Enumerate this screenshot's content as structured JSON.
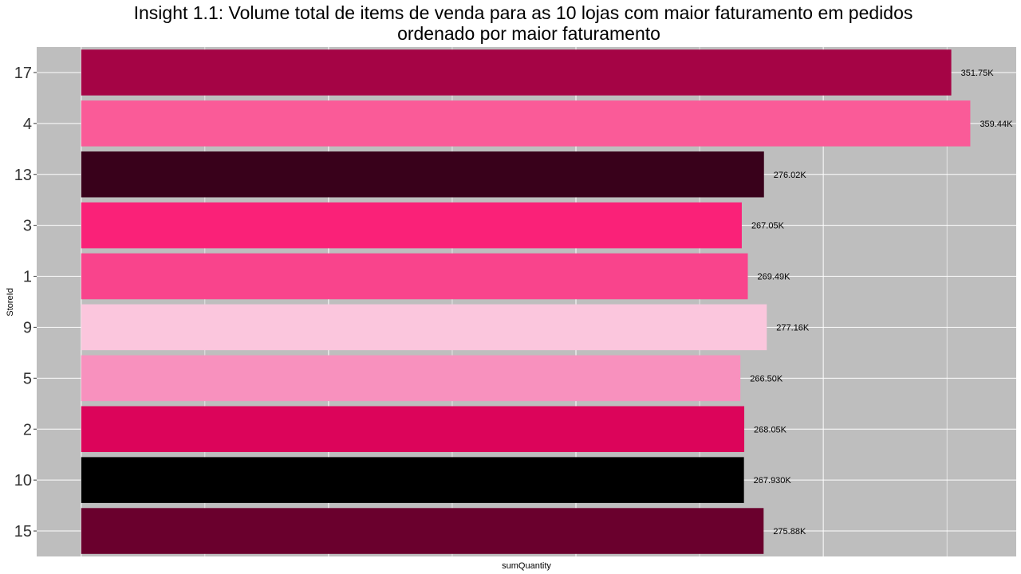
{
  "chart_data": {
    "type": "bar",
    "orientation": "horizontal",
    "title": "Insight 1.1: Volume total de items de venda para as 10 lojas com maior faturamento em pedidos ordenado por maior faturamento",
    "title_lines": [
      "Insight 1.1: Volume total de items de venda para as 10 lojas com maior faturamento em pedidos",
      "ordenado por maior faturamento"
    ],
    "xlabel": "sumQuantity",
    "ylabel": "StoreId",
    "categories": [
      "17",
      "4",
      "13",
      "3",
      "1",
      "9",
      "5",
      "2",
      "10",
      "15"
    ],
    "values": [
      351750,
      359440,
      276020,
      267050,
      269490,
      277160,
      266500,
      268050,
      267930,
      275880
    ],
    "value_labels": [
      "351.75K",
      "359.44K",
      "276.02K",
      "267.05K",
      "269.49K",
      "277.16K",
      "266.50K",
      "268.05K",
      "267.930K",
      "275.88K"
    ],
    "colors": [
      "#a50445",
      "#fa5b98",
      "#39011b",
      "#fa2178",
      "#f9448c",
      "#fbc6dd",
      "#f891be",
      "#dc045a",
      "#000000",
      "#6a002d"
    ],
    "xlim": [
      -18000,
      378000
    ],
    "grid": true,
    "panel_background": "#bebebe",
    "grid_color": "#ffffff",
    "x_tick_labels_visible": false,
    "legend": "none"
  }
}
